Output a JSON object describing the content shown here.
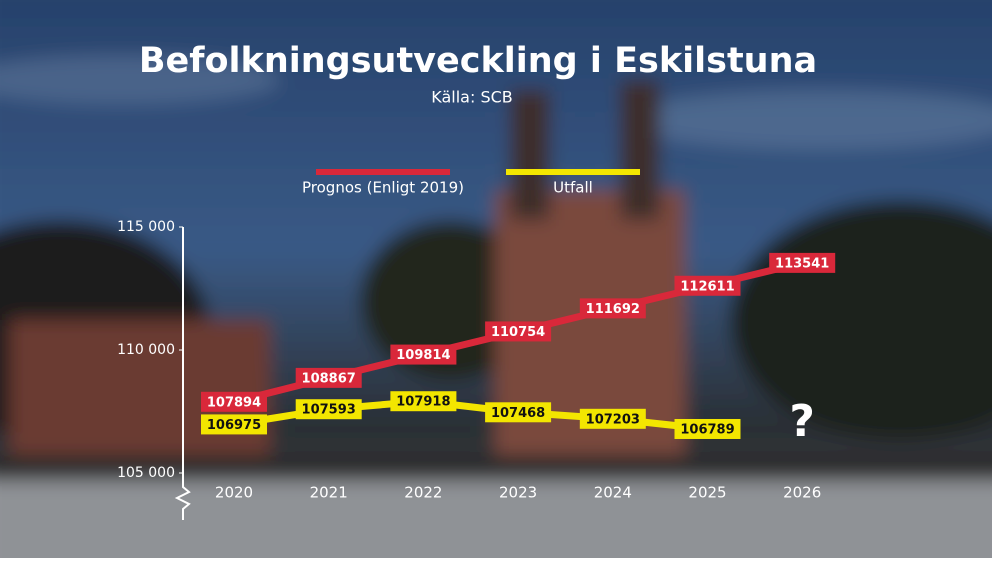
{
  "chart_data": {
    "type": "line",
    "title": "Befolkningsutveckling i Eskilstuna",
    "subtitle": "Källa: SCB",
    "categories": [
      "2020",
      "2021",
      "2022",
      "2023",
      "2024",
      "2025",
      "2026"
    ],
    "series": [
      {
        "name": "Prognos (Enligt 2019)",
        "color": "#d9283a",
        "values": [
          107894,
          108867,
          109814,
          110754,
          111692,
          112611,
          113541
        ]
      },
      {
        "name": "Utfall",
        "color": "#f3e600",
        "values": [
          106975,
          107593,
          107918,
          107468,
          107203,
          106789,
          null
        ]
      }
    ],
    "ylim": [
      105000,
      115000
    ],
    "yticks": [
      {
        "value": 105000,
        "label": "105 000"
      },
      {
        "value": 110000,
        "label": "110 000"
      },
      {
        "value": 115000,
        "label": "115 000"
      }
    ],
    "annotation": "?",
    "legend": "top",
    "grid": false
  }
}
